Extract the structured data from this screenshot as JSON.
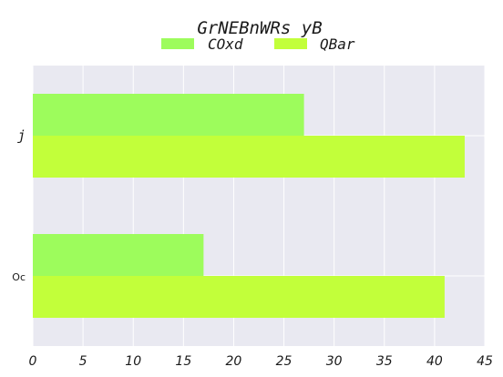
{
  "chart_data": {
    "type": "bar",
    "orientation": "horizontal",
    "title": "GrNEBnWRs yB",
    "xlabel": "",
    "ylabel": "",
    "categories": [
      "j",
      "Oc"
    ],
    "series": [
      {
        "name": "COxd",
        "values": [
          27,
          17
        ],
        "color": "#9dfc5c"
      },
      {
        "name": "QBar",
        "values": [
          43,
          41
        ],
        "color": "#c2ff3a"
      }
    ],
    "xlim": [
      0,
      45
    ],
    "xticks": [
      0,
      5,
      10,
      15,
      20,
      25,
      30,
      35,
      40,
      45
    ],
    "grid": true,
    "legend": "top-center",
    "plot_background": "#e9e9f1"
  }
}
